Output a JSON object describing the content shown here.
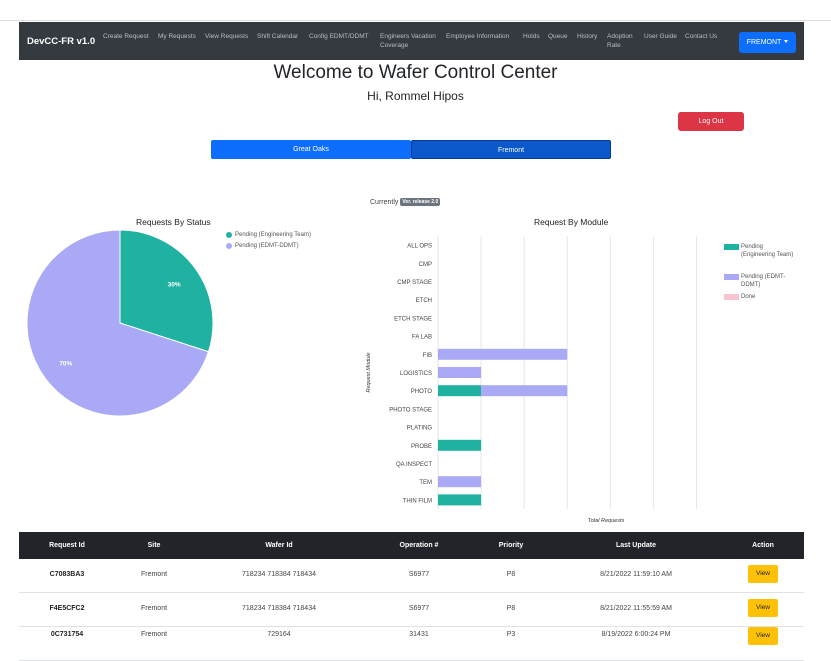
{
  "nav": {
    "brand": "DevCC-FR v1.0",
    "links": [
      "Create Request",
      "My Requests",
      "View Requests",
      "Shift Calendar",
      "Config EDMT/DDMT",
      "Engineers Vacation Coverage",
      "Employee Information",
      "Holds",
      "Queue",
      "History",
      "Adoption Rate",
      "User Guide",
      "Contact Us"
    ],
    "site": "FREMONT"
  },
  "header": {
    "title": "Welcome to Wafer Control Center",
    "greeting": "Hi, Rommel Hipos",
    "logout": "Log Out"
  },
  "site_toggle": [
    "Great Oaks",
    "Fremont"
  ],
  "currently": {
    "label": "Currently",
    "badge": "Ver. release 2.0"
  },
  "colors": {
    "teal": "#20b2a0",
    "lavender": "#a9a9f5",
    "pink": "#f8c5cf"
  },
  "chart_data": [
    {
      "type": "pie",
      "title": "Requests By Status",
      "legend_position": "top-right",
      "labels": [
        "Pending (Engineering Team)",
        "Pending (EDMT-DDMT)"
      ],
      "values": [
        30,
        70
      ],
      "value_labels": [
        "30%",
        "70%"
      ]
    },
    {
      "type": "bar",
      "orientation": "horizontal",
      "stacked": true,
      "title": "Request By Module",
      "xlabel": "Total Requests",
      "ylabel": "Request Module",
      "legend_position": "right",
      "grid": true,
      "categories": [
        "ALL OPS",
        "CMP",
        "CMP STAGE",
        "ETCH",
        "ETCH STAGE",
        "FA LAB",
        "FIB",
        "LOGISTICS",
        "PHOTO",
        "PHOTO STAGE",
        "PLATING",
        "PROBE",
        "QA INSPECT",
        "TEM",
        "THIN FILM"
      ],
      "series": [
        {
          "name": "Pending (Engineering Team)",
          "values": [
            0,
            0,
            0,
            0,
            0,
            0,
            0,
            0,
            1,
            0,
            0,
            1,
            0,
            0,
            1
          ]
        },
        {
          "name": "Pending (EDMT-DDMT)",
          "values": [
            0,
            0,
            0,
            0,
            0,
            0,
            3,
            1,
            2,
            0,
            0,
            0,
            0,
            1,
            0
          ]
        },
        {
          "name": "Done",
          "values": [
            0,
            0,
            0,
            0,
            0,
            0,
            0,
            0,
            0,
            0,
            0,
            0,
            0,
            0,
            0
          ]
        }
      ],
      "xlim": [
        0,
        6.5
      ]
    }
  ],
  "table": {
    "headers": [
      "Request Id",
      "Site",
      "Wafer Id",
      "Operation #",
      "Priority",
      "Last Update",
      "Action"
    ],
    "rows": [
      {
        "id": "C7083BA3",
        "site": "Fremont",
        "wafer": "718234 718384 718434",
        "op": "S6977",
        "priority": "P8",
        "updated": "8/21/2022 11:59:10 AM",
        "action": "View"
      },
      {
        "id": "F4E5CFC2",
        "site": "Fremont",
        "wafer": "718234 718384 718434",
        "op": "S6977",
        "priority": "P8",
        "updated": "8/21/2022 11:55:59 AM",
        "action": "View"
      },
      {
        "id": "0C731754",
        "site": "Fremont",
        "wafer": "729164",
        "op": "31431",
        "priority": "P3",
        "updated": "8/19/2022 6:00:24 PM",
        "action": "View"
      }
    ]
  }
}
